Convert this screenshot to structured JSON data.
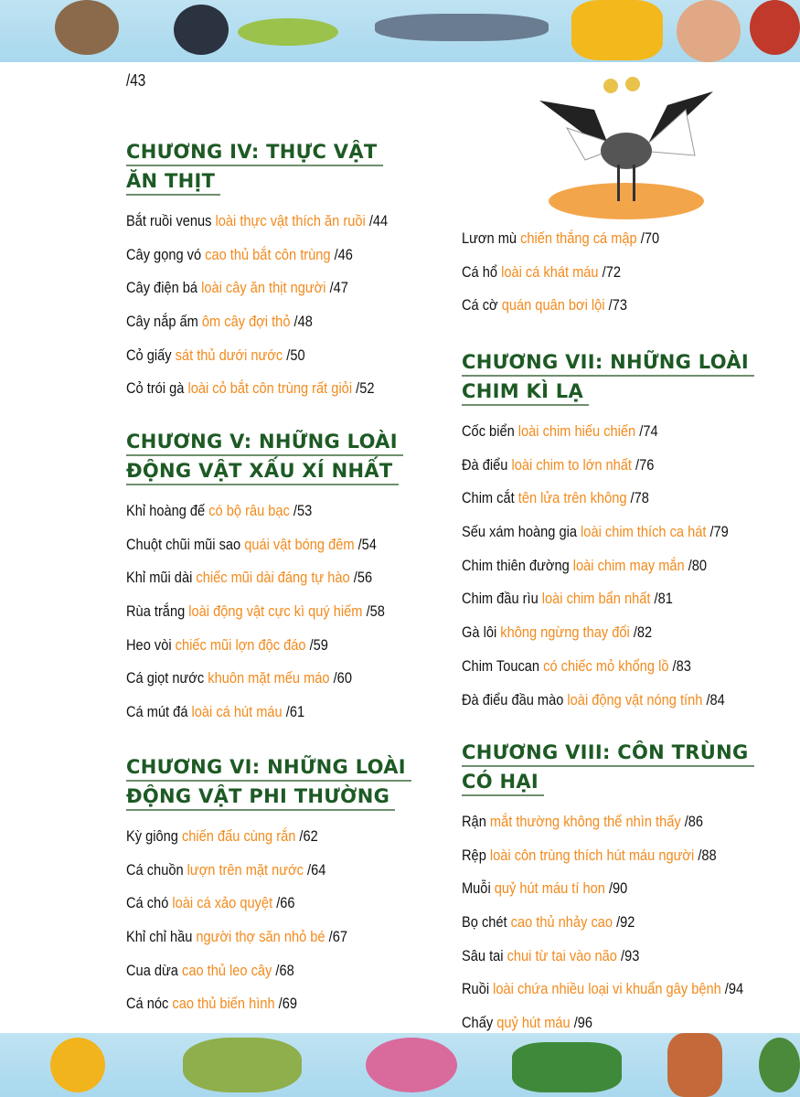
{
  "page_ref": "/43",
  "colors": {
    "heading": "#1d5a24",
    "subtitle": "#f28a1c",
    "text": "#111111",
    "banner": "#b5ddf0"
  },
  "left_column": [
    {
      "title_lines": [
        "CHƯƠNG IV: THỰC VẬT",
        "ĂN THỊT"
      ],
      "entries": [
        {
          "name": "Bắt ruồi venus",
          "desc": "loài thực vật thích ăn ruồi",
          "page": "/44"
        },
        {
          "name": "Cây gọng vó",
          "desc": "cao thủ bắt côn trùng",
          "page": "/46"
        },
        {
          "name": "Cây điện bá",
          "desc": "loài cây ăn thịt người",
          "page": "/47"
        },
        {
          "name": "Cây nắp ấm",
          "desc": "ôm cây đợi thỏ",
          "page": "/48"
        },
        {
          "name": "Cỏ giấy",
          "desc": "sát thủ dưới nước",
          "page": "/50"
        },
        {
          "name": "Cỏ trói gà",
          "desc": "loài cỏ bắt côn trùng rất giỏi",
          "page": "/52"
        }
      ]
    },
    {
      "title_lines": [
        "CHƯƠNG V: NHỮNG LOÀI",
        "ĐỘNG VẬT XẤU XÍ NHẤT"
      ],
      "entries": [
        {
          "name": "Khỉ hoàng đế",
          "desc": "có bộ râu bạc",
          "page": "/53"
        },
        {
          "name": "Chuột chũi mũi sao",
          "desc": "quái vật bóng đêm",
          "page": "/54"
        },
        {
          "name": "Khỉ mũi dài",
          "desc": "chiếc mũi dài đáng tự hào",
          "page": "/56"
        },
        {
          "name": "Rùa trắng",
          "desc": "loài động vật cực kì quý hiếm",
          "page": "/58"
        },
        {
          "name": "Heo vòi",
          "desc": "chiếc mũi  lợn độc đáo",
          "page": "/59"
        },
        {
          "name": "Cá giọt nước",
          "desc": "khuôn mặt mếu máo",
          "page": "/60"
        },
        {
          "name": "Cá mút đá",
          "desc": "loài cá hút máu",
          "page": "/61"
        }
      ]
    },
    {
      "title_lines": [
        "CHƯƠNG VI: NHỮNG LOÀI",
        "ĐỘNG VẬT PHI THƯỜNG"
      ],
      "entries": [
        {
          "name": "Kỳ giông",
          "desc": "chiến đấu cùng rắn",
          "page": "/62"
        },
        {
          "name": "Cá chuồn",
          "desc": "lượn trên mặt nước",
          "page": "/64"
        },
        {
          "name": "Cá chó",
          "desc": "loài cá xảo quyệt",
          "page": "/66"
        },
        {
          "name": "Khỉ chỉ hầu",
          "desc": "người thợ săn nhỏ bé",
          "page": "/67"
        },
        {
          "name": "Cua dừa",
          "desc": "cao thủ leo cây",
          "page": "/68"
        },
        {
          "name": "Cá nóc",
          "desc": "cao thủ biến hình",
          "page": "/69"
        }
      ]
    }
  ],
  "right_column": [
    {
      "title_lines": [],
      "entries": [
        {
          "name": "Lươn mù",
          "desc": "chiến thắng cá mập",
          "page": "/70"
        },
        {
          "name": "Cá hổ",
          "desc": "loài cá khát máu",
          "page": "/72"
        },
        {
          "name": "Cá cờ",
          "desc": "quán quân bơi lội",
          "page": "/73"
        }
      ]
    },
    {
      "title_lines": [
        "CHƯƠNG VII: NHỮNG LOÀI",
        "CHIM KÌ LẠ"
      ],
      "entries": [
        {
          "name": "Cốc biển",
          "desc": "loài chim hiếu chiến",
          "page": "/74"
        },
        {
          "name": "Đà điểu",
          "desc": "loài chim to lớn nhất",
          "page": "/76"
        },
        {
          "name": "Chim cắt",
          "desc": "tên lửa trên không",
          "page": "/78"
        },
        {
          "name": "Sếu xám hoàng gia",
          "desc": "loài chim thích ca hát",
          "page": "/79"
        },
        {
          "name": "Chim thiên đường",
          "desc": "loài chim may mắn",
          "page": "/80"
        },
        {
          "name": "Chim đầu rìu",
          "desc": "loài chim bẩn nhất",
          "page": "/81"
        },
        {
          "name": "Gà lôi",
          "desc": "không ngừng thay đổi",
          "page": "/82"
        },
        {
          "name": "Chim Toucan",
          "desc": "có chiếc mỏ khổng lồ",
          "page": "/83"
        },
        {
          "name": "Đà điểu đầu mào",
          "desc": "loài động vật nóng tính",
          "page": "/84"
        }
      ]
    },
    {
      "title_lines": [
        "CHƯƠNG VIII: CÔN TRÙNG",
        "CÓ HẠI"
      ],
      "entries": [
        {
          "name": "Rận",
          "desc": "mắt thường không thể nhìn thấy",
          "page": "/86"
        },
        {
          "name": "Rệp",
          "desc": "loài côn trùng thích hút máu người",
          "page": "/88"
        },
        {
          "name": "Muỗi",
          "desc": "quỷ hút máu tí hon",
          "page": "/90"
        },
        {
          "name": "Bọ chét",
          "desc": "cao thủ nhảy cao",
          "page": "/92"
        },
        {
          "name": "Sâu tai",
          "desc": "chui từ tai vào não",
          "page": "/93"
        },
        {
          "name": "Ruồi",
          "desc": "loài chứa nhiều loại vi khuẩn gây bệnh",
          "page": "/94"
        },
        {
          "name": "Chấy",
          "desc": "quỷ hút máu",
          "page": "/96"
        }
      ]
    }
  ]
}
